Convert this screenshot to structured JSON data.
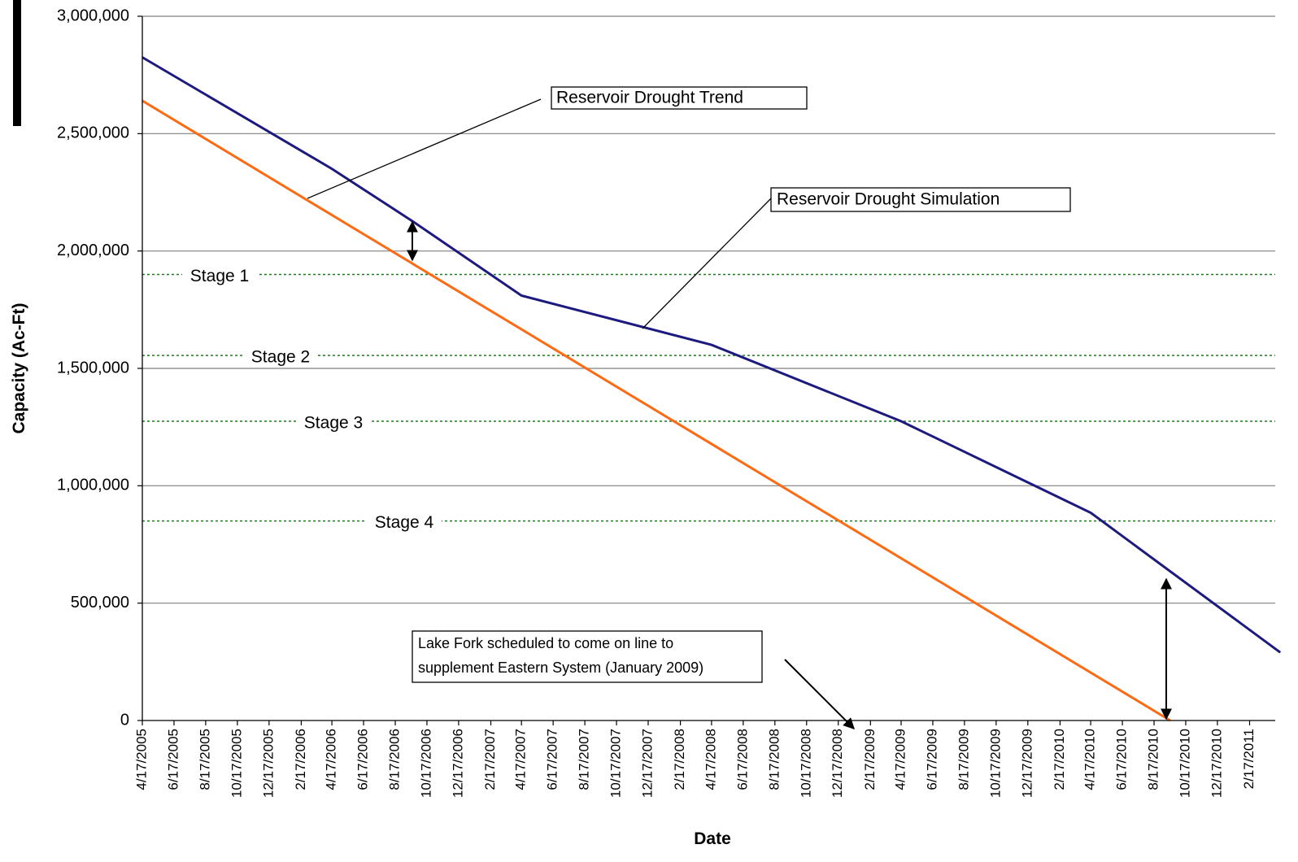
{
  "chart_data": {
    "type": "line",
    "x_label": "Date",
    "y_label": "Capacity (Ac-Ft)",
    "categories": [
      "4/17/2005",
      "6/17/2005",
      "8/17/2005",
      "10/17/2005",
      "12/17/2005",
      "2/17/2006",
      "4/17/2006",
      "6/17/2006",
      "8/17/2006",
      "10/17/2006",
      "12/17/2006",
      "2/17/2007",
      "4/17/2007",
      "6/17/2007",
      "8/17/2007",
      "10/17/2007",
      "12/17/2007",
      "2/17/2008",
      "4/17/2008",
      "6/17/2008",
      "8/17/2008",
      "10/17/2008",
      "12/17/2008",
      "2/17/2009",
      "4/17/2009",
      "6/17/2009",
      "8/17/2009",
      "10/17/2009",
      "12/17/2009",
      "2/17/2010",
      "4/17/2010",
      "6/17/2010",
      "8/17/2010",
      "10/17/2010",
      "12/17/2010",
      "2/17/2011"
    ],
    "series": [
      {
        "color": "#1c1a7e",
        "x": [
          "4/17/2005",
          "4/17/2006",
          "9/17/2006",
          "4/17/2007",
          "4/17/2008",
          "4/17/2009",
          "4/17/2010",
          "4/17/2011"
        ],
        "values": [
          2825000,
          2350000,
          2130000,
          1810000,
          1600000,
          1275000,
          885000,
          290000
        ]
      },
      {
        "color": "#ff6a13",
        "x": [
          "4/17/2005",
          "9/17/2010"
        ],
        "values": [
          2640000,
          0
        ]
      }
    ],
    "reference_lines": [
      {
        "label": "Stage 1",
        "value": 1900000,
        "color": "#0a8a0a"
      },
      {
        "label": "Stage 2",
        "value": 1555000,
        "color": "#0a8a0a"
      },
      {
        "label": "Stage 3",
        "value": 1275000,
        "color": "#0a8a0a"
      },
      {
        "label": "Stage 4",
        "value": 850000,
        "color": "#0a8a0a"
      }
    ],
    "annotations": [
      "Reservoir Drought Trend",
      "Reservoir Drought Simulation",
      [
        "Lake Fork scheduled to come on line to",
        "supplement Eastern System (January 2009)"
      ]
    ],
    "ylim": [
      0,
      3000000
    ],
    "yticks": [
      0,
      {
        "value": 500000,
        "label": "500,000"
      },
      {
        "value": 1000000,
        "label": "1,000,000"
      },
      {
        "value": 1500000,
        "label": "1,500,000"
      },
      {
        "value": 2000000,
        "label": "2,000,000"
      },
      {
        "value": 2500000,
        "label": "2,500,000"
      },
      {
        "value": 3000000,
        "label": "3,000,000"
      }
    ],
    "grid": true
  }
}
